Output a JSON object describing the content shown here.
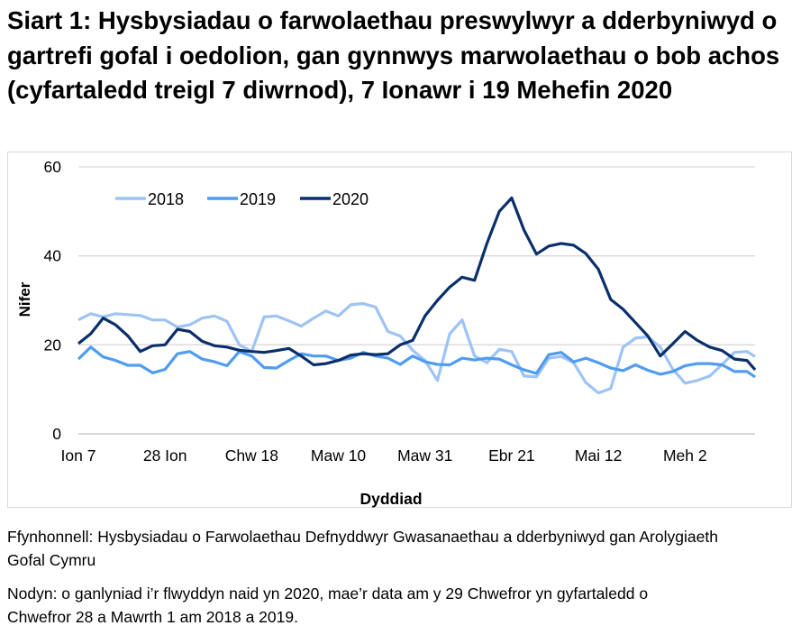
{
  "title": "Siart 1: Hysbysiadau o farwolaethau preswylwyr a dderbyniwyd o gartrefi gofal i oedolion, gan gynnwys marwolaethau o bob achos (cyfartaledd treigl 7 diwrnod), 7 Ionawr i 19 Mehefin 2020",
  "source": "Ffynhonnell: Hysbysiadau o Farwolaethau Defnyddwyr Gwasanaethau a dderbyniwyd gan Arolygiaeth Gofal Cymru",
  "note": "Nodyn: o ganlyniad i’r flwyddyn naid yn 2020, mae’r data am y 29 Chwefror yn gyfartaledd o Chwefror 28 a Mawrth 1 am 2018 a 2019.",
  "chart_data": {
    "type": "line",
    "xlabel": "Dyddiad",
    "ylabel": "Nifer",
    "ylim": [
      0,
      60
    ],
    "yticks": [
      "0",
      "20",
      "40",
      "60"
    ],
    "xticks": [
      {
        "date": "01-07",
        "label": "Ion 7"
      },
      {
        "date": "01-28",
        "label": "28 Ion"
      },
      {
        "date": "02-18",
        "label": "Chw 18"
      },
      {
        "date": "03-10",
        "label": "Maw 10"
      },
      {
        "date": "03-31",
        "label": "Maw 31"
      },
      {
        "date": "04-21",
        "label": "Ebr 21"
      },
      {
        "date": "05-12",
        "label": "Mai 12"
      },
      {
        "date": "06-02",
        "label": "Meh 2"
      }
    ],
    "xlim": [
      "01-07",
      "06-19"
    ],
    "grid": "horizontal",
    "legend": "top-left",
    "x": [
      "01-07",
      "01-10",
      "01-13",
      "01-16",
      "01-19",
      "01-22",
      "01-25",
      "01-28",
      "01-31",
      "02-03",
      "02-06",
      "02-09",
      "02-12",
      "02-15",
      "02-18",
      "02-21",
      "02-24",
      "02-27",
      "03-01",
      "03-04",
      "03-07",
      "03-10",
      "03-13",
      "03-16",
      "03-19",
      "03-22",
      "03-25",
      "03-28",
      "03-31",
      "04-03",
      "04-06",
      "04-09",
      "04-12",
      "04-15",
      "04-18",
      "04-21",
      "04-24",
      "04-27",
      "04-30",
      "05-03",
      "05-06",
      "05-09",
      "05-12",
      "05-15",
      "05-18",
      "05-21",
      "05-24",
      "05-27",
      "05-30",
      "06-02",
      "06-05",
      "06-08",
      "06-11",
      "06-14",
      "06-17",
      "06-19"
    ],
    "series": [
      {
        "name": "2018",
        "color": "#9dc3f7",
        "values": [
          25.6,
          27,
          26.3,
          27,
          26.8,
          26.6,
          25.6,
          25.6,
          24,
          24.5,
          26,
          26.5,
          25.3,
          20,
          18.5,
          26.3,
          26.5,
          25.4,
          24.2,
          26,
          27.6,
          26.5,
          29,
          29.3,
          28.5,
          23,
          22,
          18.8,
          16.5,
          12,
          22.5,
          25.6,
          17.5,
          16,
          19,
          18.5,
          13,
          12.8,
          17,
          17.4,
          16,
          11.5,
          9.2,
          10.2,
          19.5,
          21.5,
          21.8,
          19.5,
          14.6,
          11.4,
          12,
          13,
          15.6,
          18.3,
          18.5,
          17.4
        ]
      },
      {
        "name": "2019",
        "color": "#4f9cf0",
        "values": [
          16.8,
          19.5,
          17.3,
          16.5,
          15.4,
          15.4,
          13.7,
          14.5,
          18,
          18.5,
          16.8,
          16.2,
          15.3,
          18.5,
          17.5,
          14.9,
          14.8,
          16.5,
          18,
          17.5,
          17.5,
          16.5,
          17,
          18.3,
          17.5,
          17,
          15.6,
          17.5,
          16.2,
          15.6,
          15.5,
          17,
          16.6,
          17,
          16.8,
          15.5,
          14.4,
          13.6,
          17.8,
          18.3,
          16.2,
          17,
          16,
          14.8,
          14.2,
          15.5,
          14.3,
          13.4,
          14,
          15.3,
          15.8,
          15.8,
          15.5,
          14,
          14,
          12.8
        ]
      },
      {
        "name": "2020",
        "color": "#0b2f6a",
        "values": [
          20.3,
          22.5,
          26,
          24.5,
          22,
          18.5,
          19.8,
          20,
          23.5,
          23,
          20.8,
          19.8,
          19.5,
          18.8,
          18.5,
          18.3,
          18.7,
          19.2,
          17.5,
          15.5,
          15.8,
          16.5,
          17.7,
          18,
          17.8,
          18,
          20,
          21,
          26.5,
          30,
          33,
          35.2,
          34.5,
          42.8,
          50,
          53,
          45.8,
          40.4,
          42.2,
          42.8,
          42.4,
          40.5,
          37,
          30.2,
          28,
          25,
          22,
          17.5,
          20.2,
          23,
          21,
          19.5,
          18.7,
          16.8,
          16.5,
          14.4
        ]
      }
    ]
  }
}
